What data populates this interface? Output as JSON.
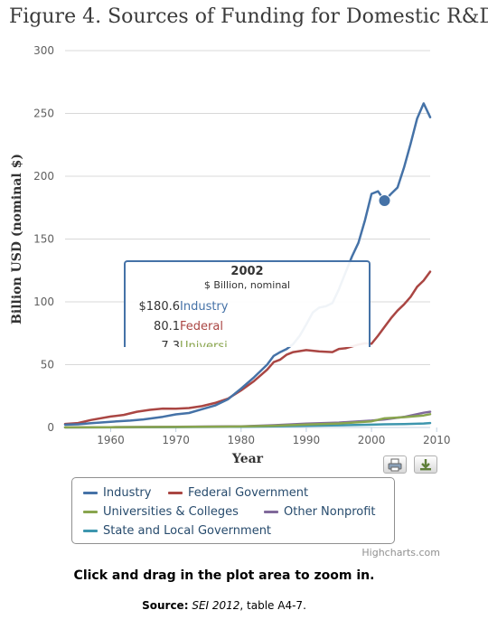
{
  "title": "Figure 4. Sources of Funding for Domestic R&D",
  "chart_data": {
    "type": "line",
    "title": "Figure 4. Sources of Funding for Domestic R&D",
    "xlabel": "Year",
    "ylabel": "Billion USD (nominal $)",
    "xlim": [
      1953,
      2009
    ],
    "ylim": [
      0,
      300
    ],
    "x_ticks": [
      1960,
      1970,
      1980,
      1990,
      2000,
      2010
    ],
    "y_ticks": [
      0,
      50,
      100,
      150,
      200,
      250,
      300
    ],
    "grid": "horizontal",
    "legend_position": "bottom",
    "series": [
      {
        "name": "Industry",
        "color": "#4572A7",
        "points": [
          [
            1953,
            2.2
          ],
          [
            1955,
            2.5
          ],
          [
            1957,
            3.4
          ],
          [
            1960,
            4.5
          ],
          [
            1963,
            5.5
          ],
          [
            1965,
            6.4
          ],
          [
            1968,
            8.5
          ],
          [
            1970,
            10.4
          ],
          [
            1972,
            11.5
          ],
          [
            1974,
            14.5
          ],
          [
            1976,
            17.5
          ],
          [
            1978,
            22.5
          ],
          [
            1980,
            30.9
          ],
          [
            1982,
            40
          ],
          [
            1984,
            50
          ],
          [
            1985,
            57
          ],
          [
            1986,
            60
          ],
          [
            1987,
            62.5
          ],
          [
            1988,
            66.5
          ],
          [
            1989,
            73
          ],
          [
            1990,
            82
          ],
          [
            1991,
            91.5
          ],
          [
            1992,
            95.5
          ],
          [
            1993,
            96.5
          ],
          [
            1994,
            99
          ],
          [
            1995,
            110
          ],
          [
            1996,
            123
          ],
          [
            1997,
            136
          ],
          [
            1998,
            147
          ],
          [
            1999,
            165
          ],
          [
            2000,
            186
          ],
          [
            2001,
            188
          ],
          [
            2002,
            180.6
          ],
          [
            2003,
            186
          ],
          [
            2004,
            191
          ],
          [
            2005,
            207
          ],
          [
            2006,
            226
          ],
          [
            2007,
            246
          ],
          [
            2008,
            258
          ],
          [
            2009,
            247
          ]
        ]
      },
      {
        "name": "Federal Government",
        "color": "#AA4643",
        "points": [
          [
            1953,
            2.8
          ],
          [
            1955,
            3.5
          ],
          [
            1957,
            6
          ],
          [
            1960,
            8.7
          ],
          [
            1962,
            10
          ],
          [
            1964,
            12.5
          ],
          [
            1966,
            14
          ],
          [
            1968,
            15
          ],
          [
            1970,
            14.9
          ],
          [
            1972,
            15.5
          ],
          [
            1974,
            17
          ],
          [
            1976,
            19.5
          ],
          [
            1978,
            23
          ],
          [
            1980,
            29.5
          ],
          [
            1982,
            37
          ],
          [
            1984,
            46
          ],
          [
            1985,
            52
          ],
          [
            1986,
            54
          ],
          [
            1987,
            58
          ],
          [
            1988,
            60
          ],
          [
            1990,
            61.6
          ],
          [
            1992,
            60.5
          ],
          [
            1994,
            60
          ],
          [
            1995,
            62.5
          ],
          [
            1996,
            63
          ],
          [
            1998,
            66
          ],
          [
            1999,
            67
          ],
          [
            2000,
            66.6
          ],
          [
            2001,
            73
          ],
          [
            2002,
            80.1
          ],
          [
            2003,
            87
          ],
          [
            2004,
            93
          ],
          [
            2005,
            98
          ],
          [
            2006,
            104
          ],
          [
            2007,
            112
          ],
          [
            2008,
            117
          ],
          [
            2009,
            124
          ]
        ]
      },
      {
        "name": "Universities & Colleges",
        "color": "#89A54E",
        "points": [
          [
            1953,
            0.1
          ],
          [
            1960,
            0.2
          ],
          [
            1970,
            0.4
          ],
          [
            1980,
            0.8
          ],
          [
            1985,
            1.4
          ],
          [
            1990,
            2.3
          ],
          [
            1995,
            3.2
          ],
          [
            2000,
            4.9
          ],
          [
            2002,
            7.3
          ],
          [
            2005,
            8.2
          ],
          [
            2008,
            9.6
          ],
          [
            2009,
            10.6
          ]
        ]
      },
      {
        "name": "Other Nonprofit",
        "color": "#80699B",
        "points": [
          [
            1953,
            0.1
          ],
          [
            1960,
            0.2
          ],
          [
            1970,
            0.5
          ],
          [
            1980,
            0.9
          ],
          [
            1985,
            1.8
          ],
          [
            1990,
            3
          ],
          [
            1995,
            3.9
          ],
          [
            2000,
            5.5
          ],
          [
            2002,
            6.4
          ],
          [
            2005,
            8.4
          ],
          [
            2008,
            11.7
          ],
          [
            2009,
            12.5
          ]
        ]
      },
      {
        "name": "State and Local Government",
        "color": "#3D96AE",
        "points": [
          [
            1953,
            0.05
          ],
          [
            1960,
            0.1
          ],
          [
            1970,
            0.3
          ],
          [
            1980,
            0.6
          ],
          [
            1985,
            0.9
          ],
          [
            1990,
            1.4
          ],
          [
            1995,
            1.7
          ],
          [
            2000,
            2.2
          ],
          [
            2002,
            2.5
          ],
          [
            2005,
            2.7
          ],
          [
            2008,
            3.2
          ],
          [
            2009,
            3.5
          ]
        ]
      }
    ],
    "tooltip": {
      "year": "2002",
      "unit": "$ Billion, nominal",
      "rows": [
        {
          "value": "$180.6",
          "name": "Industry",
          "color": "#4572A7"
        },
        {
          "value": "80.1",
          "name": "Federal",
          "color": "#AA4643"
        },
        {
          "value": "7.3",
          "name": "Universi",
          "color": "#89A54E"
        }
      ]
    }
  },
  "legend": {
    "items": [
      {
        "label": "Industry",
        "color": "#4572A7"
      },
      {
        "label": "Federal Government",
        "color": "#AA4643"
      },
      {
        "label": "Universities & Colleges",
        "color": "#89A54E"
      },
      {
        "label": "Other Nonprofit",
        "color": "#80699B"
      },
      {
        "label": "State and Local Government",
        "color": "#3D96AE"
      }
    ]
  },
  "credits": "Highcharts.com",
  "buttons": {
    "print_icon": "printer-icon",
    "export_icon": "download-icon"
  },
  "instruction": "Click and drag in the plot area to zoom in.",
  "source": {
    "label": "Source:",
    "publication": "SEI 2012",
    "detail": ", table A4-7."
  }
}
